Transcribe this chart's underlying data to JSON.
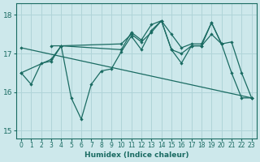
{
  "xlabel": "Humidex (Indice chaleur)",
  "xlim": [
    -0.5,
    23.5
  ],
  "ylim": [
    14.8,
    18.3
  ],
  "yticks": [
    15,
    16,
    17,
    18
  ],
  "xticks": [
    0,
    1,
    2,
    3,
    4,
    5,
    6,
    7,
    8,
    9,
    10,
    11,
    12,
    13,
    14,
    15,
    16,
    17,
    18,
    19,
    20,
    21,
    22,
    23
  ],
  "bg_color": "#cde8eb",
  "grid_color": "#b0d4d8",
  "line_color": "#1a6b62",
  "series": [
    {
      "x": [
        0,
        1,
        2,
        3,
        4,
        5,
        6,
        7,
        8,
        9,
        10,
        11,
        12,
        13,
        14,
        15,
        16,
        17,
        18,
        19,
        20,
        21,
        22,
        23
      ],
      "y": [
        16.5,
        16.2,
        16.75,
        16.8,
        17.2,
        15.85,
        15.3,
        16.2,
        16.55,
        16.6,
        17.05,
        17.45,
        17.1,
        17.6,
        17.85,
        17.1,
        16.75,
        17.2,
        17.2,
        17.5,
        17.25,
        16.5,
        15.85,
        15.85
      ],
      "marker": true
    },
    {
      "x": [
        3,
        4,
        10,
        11,
        12,
        13,
        14,
        15,
        16,
        17,
        18,
        19,
        20
      ],
      "y": [
        17.2,
        17.2,
        17.25,
        17.5,
        17.3,
        17.55,
        17.85,
        17.5,
        17.15,
        17.25,
        17.25,
        17.8,
        17.25
      ],
      "marker": false
    },
    {
      "x": [
        0,
        23
      ],
      "y": [
        17.15,
        15.85
      ],
      "marker": false
    },
    {
      "x": [
        0,
        3,
        4,
        10,
        11,
        12,
        13,
        14,
        15,
        16,
        17,
        18,
        19,
        20,
        21,
        22,
        23
      ],
      "y": [
        16.5,
        16.85,
        17.2,
        17.1,
        17.55,
        17.35,
        17.75,
        17.85,
        17.1,
        17.0,
        17.2,
        17.2,
        17.8,
        17.25,
        17.3,
        16.5,
        15.85
      ],
      "marker": false
    }
  ]
}
